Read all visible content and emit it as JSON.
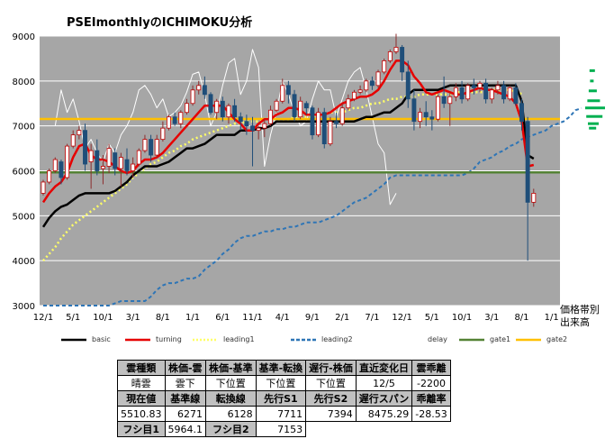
{
  "title": "PSEImonthlyのICHIMOKU分析",
  "side_note": [
    "価格帯別",
    "出来高"
  ],
  "colors": {
    "plot_bg": "#a6a6a6",
    "grid": "#ffffff",
    "basic": "#000000",
    "turning": "#e60000",
    "leading1": "#ffff66",
    "leading2": "#2e75b6",
    "delay": "#ffffff",
    "gate1": "#548235",
    "gate2": "#ffc000",
    "candle_up": "#ffffff",
    "candle_down": "#1f4e79",
    "volume_profile": "#00b050"
  },
  "legend": [
    {
      "label": "basic",
      "color": "#000000",
      "style": "solid"
    },
    {
      "label": "turning",
      "color": "#e60000",
      "style": "solid"
    },
    {
      "label": "leading1",
      "color": "#ffff66",
      "style": "dotted"
    },
    {
      "label": "leading2",
      "color": "#2e75b6",
      "style": "dashed"
    },
    {
      "label": "delay",
      "color": "#ffffff",
      "style": "solid"
    },
    {
      "label": "gate1",
      "color": "#548235",
      "style": "solid"
    },
    {
      "label": "gate2",
      "color": "#ffc000",
      "style": "solid"
    }
  ],
  "stats_table": [
    [
      {
        "t": "雲種類",
        "h": true
      },
      {
        "t": "株価-雲",
        "h": true
      },
      {
        "t": "株価-基準",
        "h": true
      },
      {
        "t": "基準-転換",
        "h": true
      },
      {
        "t": "遅行-株価",
        "h": true
      },
      {
        "t": "直近変化日",
        "h": true
      },
      {
        "t": "雲乖離",
        "h": true
      }
    ],
    [
      {
        "t": "晴雲",
        "a": "c"
      },
      {
        "t": "雲下",
        "a": "c"
      },
      {
        "t": "下位置",
        "a": "c"
      },
      {
        "t": "下位置",
        "a": "c"
      },
      {
        "t": "下位置",
        "a": "c"
      },
      {
        "t": "12/5",
        "a": "c"
      },
      {
        "t": "-2200",
        "a": "c"
      }
    ],
    [
      {
        "t": "現在値",
        "h": true
      },
      {
        "t": "基準線",
        "h": true
      },
      {
        "t": "転換線",
        "h": true
      },
      {
        "t": "先行S1",
        "h": true
      },
      {
        "t": "先行S2",
        "h": true
      },
      {
        "t": "遅行スパン",
        "h": true
      },
      {
        "t": "乖離率",
        "h": true
      }
    ],
    [
      {
        "t": "5510.83"
      },
      {
        "t": "6271"
      },
      {
        "t": "6128"
      },
      {
        "t": "7711"
      },
      {
        "t": "7394"
      },
      {
        "t": "8475.29"
      },
      {
        "t": "-28.53"
      }
    ],
    [
      {
        "t": "フシ目1",
        "h": true
      },
      {
        "t": "5964.1"
      },
      {
        "t": "フシ目2",
        "h": true
      },
      {
        "t": "7153"
      }
    ]
  ],
  "chart_data": {
    "type": "candlestick",
    "title": "PSEImonthlyのICHIMOKU分析",
    "ylim": [
      3000,
      9000
    ],
    "y_ticks": [
      3000,
      4000,
      5000,
      6000,
      7000,
      8000,
      9000
    ],
    "x_tick_labels": [
      "12/1",
      "5/1",
      "10/1",
      "3/1",
      "8/1",
      "1/1",
      "6/1",
      "11/1",
      "4/1",
      "9/1",
      "2/1",
      "7/1",
      "12/1",
      "5/1",
      "10/1",
      "3/1",
      "8/1",
      "1/1"
    ],
    "grid": true,
    "legend_position": "bottom",
    "horizontal_lines": [
      {
        "name": "gate1",
        "value": 5964.1
      },
      {
        "name": "gate2",
        "value": 7153
      }
    ],
    "candles": [
      [
        5500,
        5800,
        5450,
        5750
      ],
      [
        5750,
        6050,
        5700,
        6000
      ],
      [
        6000,
        6300,
        5950,
        6250
      ],
      [
        6200,
        6250,
        5700,
        5850
      ],
      [
        5850,
        6600,
        5800,
        6550
      ],
      [
        6550,
        6900,
        6500,
        6800
      ],
      [
        6800,
        7000,
        6700,
        6900
      ],
      [
        6900,
        7050,
        6000,
        6150
      ],
      [
        6200,
        6600,
        5600,
        6450
      ],
      [
        6450,
        6700,
        5900,
        6000
      ],
      [
        6050,
        6350,
        5700,
        6100
      ],
      [
        6100,
        6600,
        5950,
        6500
      ],
      [
        6400,
        6500,
        5900,
        6050
      ],
      [
        6050,
        6400,
        5650,
        6300
      ],
      [
        6250,
        6500,
        5900,
        6000
      ],
      [
        6000,
        6300,
        5850,
        6150
      ],
      [
        6150,
        6500,
        6100,
        6450
      ],
      [
        6450,
        6800,
        6400,
        6700
      ],
      [
        6700,
        6800,
        6200,
        6350
      ],
      [
        6350,
        6800,
        6300,
        6700
      ],
      [
        6700,
        7100,
        6650,
        6950
      ],
      [
        6950,
        7250,
        6900,
        7200
      ],
      [
        7200,
        7300,
        7000,
        7050
      ],
      [
        7050,
        7350,
        6950,
        7300
      ],
      [
        7300,
        7600,
        7250,
        7500
      ],
      [
        7500,
        7900,
        7450,
        7800
      ],
      [
        7800,
        8000,
        7700,
        7900
      ],
      [
        7900,
        8100,
        7600,
        7700
      ],
      [
        7700,
        7750,
        7250,
        7300
      ],
      [
        7300,
        7600,
        7150,
        7550
      ],
      [
        7550,
        7650,
        7100,
        7200
      ],
      [
        7200,
        7500,
        7050,
        7450
      ],
      [
        7450,
        7600,
        7100,
        7200
      ],
      [
        7200,
        7300,
        6900,
        7100
      ],
      [
        7100,
        7250,
        6800,
        7000
      ],
      [
        7000,
        7200,
        6100,
        6900
      ],
      [
        6900,
        7000,
        6700,
        6950
      ],
      [
        6950,
        7150,
        6750,
        7050
      ],
      [
        7050,
        7450,
        7000,
        7350
      ],
      [
        7350,
        7600,
        7300,
        7550
      ],
      [
        7550,
        8050,
        7500,
        7900
      ],
      [
        7900,
        8000,
        7500,
        7700
      ],
      [
        7700,
        7800,
        7100,
        7200
      ],
      [
        7200,
        7650,
        7150,
        7550
      ],
      [
        7500,
        7550,
        7250,
        7400
      ],
      [
        7400,
        7450,
        6700,
        6800
      ],
      [
        6800,
        7400,
        6750,
        7300
      ],
      [
        7300,
        7400,
        6500,
        6600
      ],
      [
        6600,
        7200,
        6550,
        7100
      ],
      [
        7100,
        7300,
        6950,
        7050
      ],
      [
        7050,
        7500,
        7000,
        7400
      ],
      [
        7400,
        7700,
        7350,
        7600
      ],
      [
        7600,
        7800,
        7550,
        7750
      ],
      [
        7750,
        7900,
        7700,
        7800
      ],
      [
        7800,
        8050,
        7750,
        8000
      ],
      [
        8000,
        8100,
        7800,
        7900
      ],
      [
        7900,
        8250,
        7850,
        8200
      ],
      [
        8200,
        8500,
        8150,
        8450
      ],
      [
        8450,
        8700,
        8400,
        8650
      ],
      [
        8650,
        9050,
        8600,
        8750
      ],
      [
        8750,
        8800,
        8000,
        8200
      ],
      [
        8200,
        8450,
        7400,
        7600
      ],
      [
        7600,
        7800,
        6900,
        7100
      ],
      [
        7100,
        7400,
        6950,
        7300
      ],
      [
        7300,
        7550,
        7000,
        7200
      ],
      [
        7200,
        7350,
        6900,
        7150
      ],
      [
        7150,
        7700,
        7100,
        7650
      ],
      [
        7650,
        8100,
        7400,
        7500
      ],
      [
        7500,
        7750,
        7000,
        7650
      ],
      [
        7650,
        7950,
        7550,
        7850
      ],
      [
        7850,
        8000,
        7500,
        7600
      ],
      [
        7600,
        7950,
        7550,
        7900
      ],
      [
        7900,
        8050,
        7700,
        7850
      ],
      [
        7850,
        8000,
        7750,
        7950
      ],
      [
        7950,
        8050,
        7500,
        7600
      ],
      [
        7600,
        7850,
        7500,
        7800
      ],
      [
        7800,
        8000,
        7700,
        7900
      ],
      [
        7900,
        8000,
        7500,
        7600
      ],
      [
        7600,
        7900,
        7550,
        7850
      ],
      [
        7850,
        7950,
        7450,
        7500
      ],
      [
        7500,
        7600,
        6900,
        7100
      ],
      [
        7100,
        7200,
        4000,
        5300
      ],
      [
        5300,
        5600,
        5200,
        5500
      ]
    ],
    "series": [
      {
        "name": "basic",
        "values": [
          4750,
          4950,
          5100,
          5200,
          5250,
          5350,
          5450,
          5500,
          5500,
          5500,
          5500,
          5500,
          5550,
          5650,
          5750,
          5900,
          6000,
          6100,
          6100,
          6100,
          6150,
          6200,
          6300,
          6400,
          6500,
          6500,
          6550,
          6600,
          6700,
          6800,
          6800,
          6800,
          6800,
          6900,
          6900,
          6900,
          6950,
          6950,
          7000,
          7100,
          7100,
          7100,
          7100,
          7100,
          7100,
          7100,
          7100,
          7100,
          7100,
          7100,
          7100,
          7100,
          7100,
          7150,
          7200,
          7200,
          7250,
          7300,
          7300,
          7400,
          7500,
          7700,
          7800,
          7800,
          7800,
          7800,
          7800,
          7850,
          7900,
          7900,
          7900,
          7900,
          7900,
          7900,
          7900,
          7900,
          7900,
          7900,
          7900,
          7900,
          7550,
          6350,
          6270
        ]
      },
      {
        "name": "turning",
        "values": [
          5300,
          5500,
          5650,
          5750,
          5950,
          6300,
          6550,
          6600,
          6350,
          6250,
          6250,
          6200,
          6100,
          6000,
          5950,
          6000,
          6150,
          6250,
          6250,
          6300,
          6400,
          6550,
          6700,
          6850,
          7000,
          7150,
          7300,
          7450,
          7450,
          7450,
          7450,
          7300,
          7150,
          7050,
          6900,
          6900,
          7050,
          7150,
          7150,
          7250,
          7300,
          7400,
          7400,
          7350,
          7250,
          7250,
          7250,
          7250,
          7300,
          7400,
          7500,
          7550,
          7600,
          7650,
          7650,
          7700,
          7800,
          8000,
          8250,
          8450,
          8450,
          8350,
          8100,
          7950,
          7750,
          7700,
          7750,
          7800,
          7750,
          7700,
          7700,
          7750,
          7800,
          7850,
          7800,
          7800,
          7750,
          7700,
          7650,
          7500,
          7100,
          6100,
          6130
        ]
      },
      {
        "name": "leading1",
        "values": [
          4000,
          4150,
          4300,
          4500,
          4650,
          4800,
          4900,
          5000,
          5100,
          5200,
          5300,
          5400,
          5500,
          5600,
          5700,
          5850,
          5950,
          6050,
          6150,
          6200,
          6300,
          6400,
          6450,
          6550,
          6600,
          6700,
          6750,
          6800,
          6850,
          6900,
          6950,
          7000,
          7050,
          7050,
          7100,
          7100,
          7100,
          7150,
          7150,
          7150,
          7150,
          7150,
          7200,
          7200,
          7200,
          7200,
          7250,
          7250,
          7300,
          7300,
          7300,
          7350,
          7400,
          7400,
          7450,
          7500,
          7500,
          7550,
          7600,
          7600,
          7650,
          7650,
          7650,
          7700,
          7700,
          7700,
          7700,
          7700,
          7700,
          7750,
          7750,
          7750,
          7750,
          7750,
          7750,
          7800,
          7800,
          7800,
          7800,
          7750,
          7711
        ]
      },
      {
        "name": "leading2",
        "values": [
          3000,
          3000,
          3000,
          3000,
          3000,
          3000,
          3000,
          3000,
          3000,
          3000,
          3000,
          3000,
          3050,
          3100,
          3100,
          3100,
          3100,
          3100,
          3200,
          3350,
          3450,
          3500,
          3500,
          3550,
          3600,
          3600,
          3650,
          3800,
          3900,
          4000,
          4150,
          4250,
          4400,
          4500,
          4550,
          4550,
          4600,
          4650,
          4650,
          4700,
          4700,
          4750,
          4750,
          4800,
          4850,
          4850,
          4850,
          4900,
          4950,
          5000,
          5100,
          5200,
          5300,
          5350,
          5400,
          5500,
          5600,
          5700,
          5850,
          5900,
          5900,
          5900,
          5900,
          5900,
          5900,
          5900,
          5900,
          5900,
          5900,
          5900,
          5900,
          5950,
          6050,
          6200,
          6250,
          6300,
          6400,
          6450,
          6550,
          6600,
          6700,
          6750,
          6800,
          6850,
          6900,
          7000,
          7050,
          7100,
          7200,
          7350,
          7394
        ]
      },
      {
        "name": "delay",
        "values": [
          7000,
          7800,
          7300,
          7600,
          7100,
          6500,
          6700,
          6400,
          6200,
          6600,
          6400,
          6800,
          7000,
          7300,
          7800,
          7900,
          7700,
          7400,
          7600,
          7200,
          7300,
          7450,
          7750,
          8150,
          8200,
          7700,
          7000,
          7300,
          7900,
          8400,
          8500,
          7700,
          8000,
          8700,
          8300,
          6100,
          6800,
          7300,
          8000,
          7700,
          7300,
          7000,
          7100,
          7600,
          8000,
          7800,
          7800,
          7200,
          7600,
          8000,
          8200,
          8300,
          7800,
          7200,
          6600,
          6400,
          5250,
          5500
        ]
      }
    ]
  }
}
